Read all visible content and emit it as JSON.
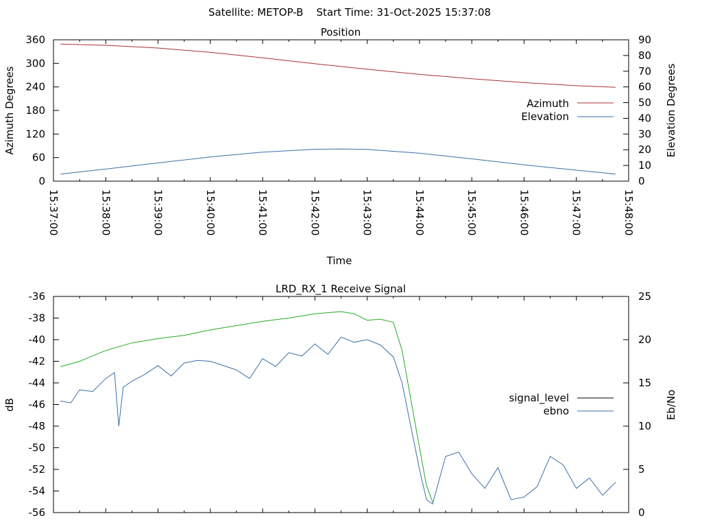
{
  "header": {
    "title": "Satellite: METOP-B    Start Time: 31-Oct-2025 15:37:08"
  },
  "colors": {
    "azimuth": "#a83232",
    "elevation": "#3a6ea5",
    "signal_level": "#000000",
    "ebno": "#3a6ea5",
    "signal_level_drawn_high": "#22aa22",
    "signal_level_drawn_low": "#aa2222"
  },
  "chart_data": [
    {
      "type": "line",
      "title": "Position",
      "xlabel": "Time",
      "ylabel": "Azimuth Degrees",
      "y2label": "Elevation Degrees",
      "xticks": [
        "15:37:00",
        "15:38:00",
        "15:39:00",
        "15:40:00",
        "15:41:00",
        "15:42:00",
        "15:43:00",
        "15:44:00",
        "15:45:00",
        "15:46:00",
        "15:47:00",
        "15:48:00"
      ],
      "xlim": [
        "15:37:00",
        "15:48:00"
      ],
      "ylim": [
        0,
        360
      ],
      "yticks": [
        0,
        60,
        120,
        180,
        240,
        300,
        360
      ],
      "y2lim": [
        0,
        90
      ],
      "y2ticks": [
        0,
        10,
        20,
        30,
        40,
        50,
        60,
        70,
        80,
        90
      ],
      "legend_position": "right-middle",
      "series": [
        {
          "name": "Azimuth",
          "axis": "left",
          "x": [
            "15:37:08",
            "15:38:00",
            "15:39:00",
            "15:40:00",
            "15:41:00",
            "15:42:00",
            "15:43:00",
            "15:44:00",
            "15:45:00",
            "15:46:00",
            "15:47:00",
            "15:47:45"
          ],
          "y": [
            349,
            346,
            339,
            328,
            314,
            299,
            285,
            272,
            261,
            251,
            243,
            239
          ]
        },
        {
          "name": "Elevation",
          "axis": "right",
          "x": [
            "15:37:08",
            "15:38:00",
            "15:39:00",
            "15:40:00",
            "15:41:00",
            "15:42:00",
            "15:42:30",
            "15:43:00",
            "15:44:00",
            "15:45:00",
            "15:46:00",
            "15:47:00",
            "15:47:45"
          ],
          "y": [
            4.5,
            7.7,
            11.6,
            15.4,
            18.5,
            20.3,
            20.5,
            20.2,
            17.8,
            14.2,
            10.4,
            7.0,
            4.5
          ]
        }
      ]
    },
    {
      "type": "line",
      "title": "LRD_RX_1 Receive Signal",
      "ylabel": "dB",
      "y2label": "Eb/No",
      "xlim": [
        "15:37:00",
        "15:48:00"
      ],
      "ylim": [
        -56,
        -36
      ],
      "yticks": [
        -56,
        -54,
        -52,
        -50,
        -48,
        -46,
        -44,
        -42,
        -40,
        -38,
        -36
      ],
      "y2lim": [
        0,
        25
      ],
      "y2ticks": [
        0,
        5,
        10,
        15,
        20,
        25
      ],
      "legend_position": "right-middle",
      "series": [
        {
          "name": "signal_level",
          "axis": "left",
          "x": [
            "15:37:08",
            "15:37:30",
            "15:38:00",
            "15:38:30",
            "15:39:00",
            "15:39:30",
            "15:40:00",
            "15:40:30",
            "15:41:00",
            "15:41:30",
            "15:42:00",
            "15:42:15",
            "15:42:30",
            "15:42:45",
            "15:43:00",
            "15:43:15",
            "15:43:30",
            "15:43:40",
            "15:43:50",
            "15:44:00",
            "15:44:08",
            "15:44:15"
          ],
          "y": [
            -42.5,
            -42.0,
            -41.0,
            -40.3,
            -39.9,
            -39.6,
            -39.1,
            -38.7,
            -38.3,
            -38.0,
            -37.6,
            -37.5,
            -37.4,
            -37.6,
            -38.2,
            -38.1,
            -38.4,
            -41.0,
            -45.5,
            -50.0,
            -53.5,
            -55.0
          ]
        },
        {
          "name": "ebno",
          "axis": "right",
          "x": [
            "15:37:08",
            "15:37:20",
            "15:37:30",
            "15:37:45",
            "15:38:00",
            "15:38:10",
            "15:38:15",
            "15:38:20",
            "15:38:30",
            "15:38:45",
            "15:39:00",
            "15:39:15",
            "15:39:30",
            "15:39:45",
            "15:40:00",
            "15:40:30",
            "15:40:45",
            "15:41:00",
            "15:41:15",
            "15:41:30",
            "15:41:45",
            "15:42:00",
            "15:42:15",
            "15:42:30",
            "15:42:45",
            "15:43:00",
            "15:43:15",
            "15:43:30",
            "15:43:40",
            "15:43:50",
            "15:44:00",
            "15:44:08",
            "15:44:15",
            "15:44:30",
            "15:44:45",
            "15:45:00",
            "15:45:15",
            "15:45:30",
            "15:45:45",
            "15:46:00",
            "15:46:15",
            "15:46:30",
            "15:46:45",
            "15:47:00",
            "15:47:15",
            "15:47:30",
            "15:47:45"
          ],
          "y": [
            12.9,
            12.7,
            14.2,
            14.0,
            15.5,
            16.2,
            10.0,
            14.5,
            15.2,
            16.0,
            17.0,
            15.8,
            17.3,
            17.6,
            17.5,
            16.5,
            15.5,
            17.8,
            16.9,
            18.5,
            18.1,
            19.5,
            18.3,
            20.3,
            19.7,
            20.0,
            19.4,
            18.0,
            15.0,
            10.0,
            5.0,
            1.5,
            1.0,
            6.5,
            7.0,
            4.5,
            2.8,
            5.2,
            1.5,
            1.8,
            3.0,
            6.5,
            5.5,
            2.8,
            4.0,
            2.0,
            3.5
          ]
        }
      ]
    }
  ]
}
